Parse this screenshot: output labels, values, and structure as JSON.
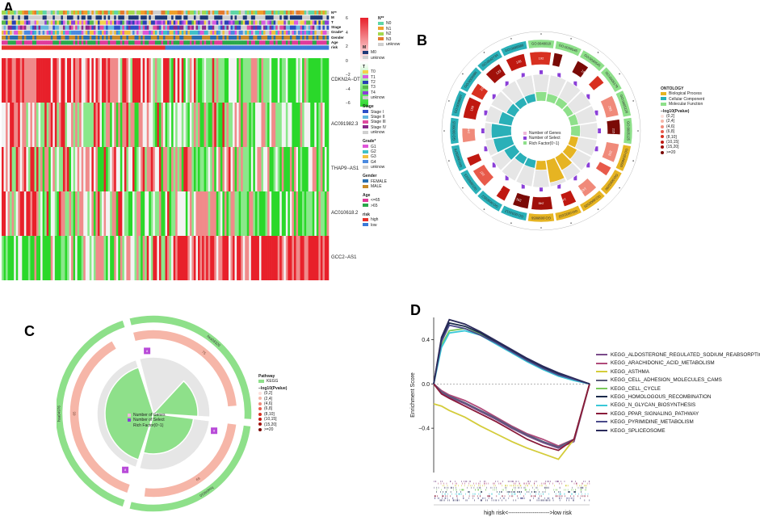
{
  "panels": {
    "a": "A",
    "b": "B",
    "c": "C",
    "d": "D"
  },
  "heatmap_a": {
    "annotation_rows": [
      "N**",
      "M",
      "T",
      "Stage",
      "Grade*",
      "Gender",
      "Age",
      "risk"
    ],
    "genes": [
      "CDKN2A−DT",
      "AC091982.3",
      "THAP9−AS1",
      "AC010618.2",
      "GCC2−AS1"
    ],
    "colorbar_ticks": [
      "6",
      "4",
      "2",
      "0",
      "−2",
      "−4",
      "−6"
    ],
    "legends": [
      {
        "title": "N**",
        "items": [
          {
            "label": "N0",
            "color": "#5fd6a6"
          },
          {
            "label": "N1",
            "color": "#f0a02a"
          },
          {
            "label": "N2",
            "color": "#a3d94d"
          },
          {
            "label": "N3",
            "color": "#e57a2f"
          },
          {
            "label": "unknow",
            "color": "#cfcfcf"
          }
        ]
      },
      {
        "title": "M",
        "items": [
          {
            "label": "M0",
            "color": "#1e3a78"
          },
          {
            "label": "unknow",
            "color": "#cfcfcf"
          }
        ]
      },
      {
        "title": "T",
        "items": [
          {
            "label": "T0",
            "color": "#f3d34a"
          },
          {
            "label": "T1",
            "color": "#d85ce0"
          },
          {
            "label": "T2",
            "color": "#2a3fb5"
          },
          {
            "label": "T3",
            "color": "#59b84a"
          },
          {
            "label": "T4",
            "color": "#8a3fd8"
          },
          {
            "label": "unknow",
            "color": "#cfcfcf"
          }
        ]
      },
      {
        "title": "Stage",
        "items": [
          {
            "label": "Stage I",
            "color": "#2c50c8"
          },
          {
            "label": "Stage II",
            "color": "#64b8e0"
          },
          {
            "label": "Stage III",
            "color": "#e04aa0"
          },
          {
            "label": "Stage IV",
            "color": "#8a2a8a"
          },
          {
            "label": "unknow",
            "color": "#cfcfcf"
          }
        ]
      },
      {
        "title": "Grade*",
        "items": [
          {
            "label": "G1",
            "color": "#e055d8"
          },
          {
            "label": "G2",
            "color": "#3fc0c8"
          },
          {
            "label": "G3",
            "color": "#f0c040"
          },
          {
            "label": "G4",
            "color": "#4a8ae0"
          },
          {
            "label": "unknow",
            "color": "#cfcfcf"
          }
        ]
      },
      {
        "title": "Gender",
        "items": [
          {
            "label": "FEMALE",
            "color": "#2a6fb0"
          },
          {
            "label": "MALE",
            "color": "#c88a2a"
          }
        ]
      },
      {
        "title": "Age",
        "items": [
          {
            "label": "<=65",
            "color": "#e03a9a"
          },
          {
            "label": ">65",
            "color": "#2aa84a"
          }
        ]
      },
      {
        "title": "risk",
        "items": [
          {
            "label": "high",
            "color": "#e8302a"
          },
          {
            "label": "low",
            "color": "#3a7ad8"
          }
        ]
      }
    ]
  },
  "go_circle_b": {
    "terms": [
      "GO:0048018",
      "GO:0030546",
      "GO:0030545",
      "GO:0005179",
      "GO:0005126",
      "GO:0005125",
      "GO:0046093",
      "GO:0003290",
      "GO:0002526",
      "GO:0032103",
      "GO:0098656",
      "GO:0031012",
      "GO:0030312",
      "GO:0062023",
      "GO:0005576",
      "GO:0005615",
      "GO:0009897",
      "GO:0009986",
      "GO:0042734",
      "GO:0098589"
    ],
    "gene_counts": [
      "192",
      "194",
      "195",
      "118",
      "293",
      "215",
      "202",
      "188",
      "143",
      "140",
      "248",
      "291",
      "231",
      "167",
      "286",
      "244",
      "159",
      "215",
      "123",
      "126"
    ],
    "legend": {
      "ontology_title": "ONTOLOGY",
      "ontology_items": [
        {
          "label": "Biological Process",
          "color": "#e6b422"
        },
        {
          "label": "Cellular Component",
          "color": "#2ab0b8"
        },
        {
          "label": "Molecular Function",
          "color": "#8ee08a"
        }
      ],
      "pvalue_title": "−log10(Pvalue)",
      "pvalue_items": [
        "(0,2]",
        "(2,4]",
        "(4,6]",
        "(6,8]",
        "(8,10]",
        "(10,15]",
        "(15,20]",
        ">=20"
      ],
      "track_items": [
        "Number of Genes",
        "Number of Select",
        "Rich Factor(0~1)"
      ]
    }
  },
  "kegg_circle_c": {
    "terms": [
      "hsa03320",
      "hsa04010",
      "hsa04976"
    ],
    "values": [
      "75",
      "69",
      "65"
    ],
    "select_values": [
      "8",
      "8",
      "8"
    ],
    "legend": {
      "pathway_title": "Pathway",
      "pathway_item": "KEGG",
      "pvalue_title": "−log10(Pvalue)",
      "pvalue_items": [
        "(0,2]",
        "(2,4]",
        "(4,6]",
        "(6,8]",
        "(8,10]",
        "(10,15]",
        "(15,20]",
        ">=20"
      ],
      "track_items": [
        "Number of Genes",
        "Number of Select",
        "Rich Factor(0~1)"
      ]
    }
  },
  "chart_data": {
    "type": "line",
    "title": "",
    "ylabel": "Enrichment Score",
    "xlabel": "high risk<---------------------->low risk",
    "yticks": [
      "0.4",
      "0.0",
      "−0.4"
    ],
    "ylim": [
      -0.8,
      0.6
    ],
    "x": [
      0,
      0.05,
      0.1,
      0.2,
      0.3,
      0.4,
      0.5,
      0.6,
      0.7,
      0.8,
      0.9,
      1.0
    ],
    "series": [
      {
        "name": "KEGG_ALDOSTERONE_REGULATED_SODIUM_REABSORPTION",
        "color": "#7a4a8a",
        "values": [
          0,
          -0.08,
          -0.12,
          -0.18,
          -0.25,
          -0.32,
          -0.4,
          -0.47,
          -0.53,
          -0.58,
          -0.52,
          0
        ]
      },
      {
        "name": "KEGG_ARACHIDONIC_ACID_METABOLISM",
        "color": "#b04a7a",
        "values": [
          0,
          -0.06,
          -0.1,
          -0.15,
          -0.22,
          -0.3,
          -0.38,
          -0.45,
          -0.5,
          -0.56,
          -0.5,
          0
        ]
      },
      {
        "name": "KEGG_ASTHMA",
        "color": "#d4cc3a",
        "values": [
          -0.18,
          -0.2,
          -0.24,
          -0.3,
          -0.38,
          -0.45,
          -0.52,
          -0.58,
          -0.63,
          -0.68,
          -0.5,
          0
        ]
      },
      {
        "name": "KEGG_CELL_ADHESION_MOLECULES_CAMS",
        "color": "#5a5a7a",
        "values": [
          0,
          -0.07,
          -0.11,
          -0.17,
          -0.24,
          -0.31,
          -0.39,
          -0.46,
          -0.52,
          -0.57,
          -0.5,
          0
        ]
      },
      {
        "name": "KEGG_CELL_CYCLE",
        "color": "#7ac85a",
        "values": [
          0,
          0.35,
          0.48,
          0.5,
          0.45,
          0.38,
          0.3,
          0.22,
          0.15,
          0.08,
          0.04,
          0
        ]
      },
      {
        "name": "KEGG_HOMOLOGOUS_RECOMBINATION",
        "color": "#1a2a4a",
        "values": [
          0,
          0.4,
          0.55,
          0.52,
          0.46,
          0.38,
          0.3,
          0.22,
          0.15,
          0.09,
          0.04,
          0
        ]
      },
      {
        "name": "KEGG_N_GLYCAN_BIOSYNTHESIS",
        "color": "#3ac8d8",
        "values": [
          0,
          0.33,
          0.46,
          0.48,
          0.44,
          0.36,
          0.28,
          0.2,
          0.13,
          0.07,
          0.03,
          0
        ]
      },
      {
        "name": "KEGG_PPAR_SIGNALING_PATHWAY",
        "color": "#8a1a3a",
        "values": [
          0,
          -0.09,
          -0.13,
          -0.2,
          -0.27,
          -0.34,
          -0.42,
          -0.5,
          -0.56,
          -0.6,
          -0.5,
          0
        ]
      },
      {
        "name": "KEGG_PYRIMIDINE_METABOLISM",
        "color": "#4a4a8a",
        "values": [
          0,
          0.38,
          0.53,
          0.5,
          0.44,
          0.37,
          0.29,
          0.21,
          0.14,
          0.08,
          0.04,
          0
        ]
      },
      {
        "name": "KEGG_SPLICEOSOME",
        "color": "#2a2a5a",
        "values": [
          0,
          0.42,
          0.58,
          0.54,
          0.47,
          0.39,
          0.31,
          0.23,
          0.16,
          0.1,
          0.05,
          0
        ]
      }
    ]
  }
}
